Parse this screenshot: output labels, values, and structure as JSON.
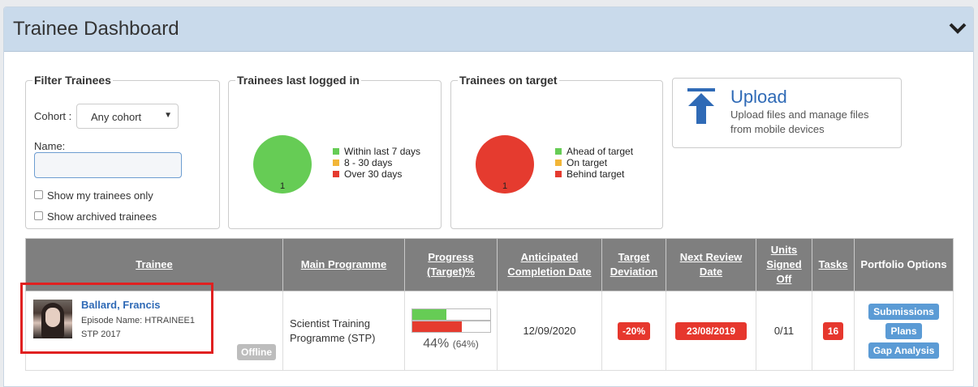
{
  "header": {
    "title": "Trainee Dashboard",
    "collapse_icon": "chevron-down-icon"
  },
  "filter": {
    "legend": "Filter Trainees",
    "cohort_label": "Cohort :",
    "cohort_value": "Any cohort",
    "name_label": "Name:",
    "name_value": "",
    "show_my_trainees": "Show my trainees only",
    "show_archived": "Show archived trainees"
  },
  "chart_data": [
    {
      "type": "pie",
      "title": "Trainees last logged in",
      "categories": [
        "Within last 7 days",
        "8 - 30 days",
        "Over 30 days"
      ],
      "values": [
        1,
        0,
        0
      ],
      "colors": [
        "#66cc55",
        "#f2b638",
        "#e53b2f"
      ],
      "slice_label": "1",
      "legend": "right"
    },
    {
      "type": "pie",
      "title": "Trainees on target",
      "categories": [
        "Ahead of target",
        "On target",
        "Behind target"
      ],
      "values": [
        0,
        0,
        1
      ],
      "colors": [
        "#66cc55",
        "#f2b638",
        "#e53b2f"
      ],
      "slice_label": "1",
      "legend": "right"
    }
  ],
  "upload": {
    "title": "Upload",
    "description": "Upload files and manage files from mobile devices",
    "icon": "upload-arrow-icon"
  },
  "table": {
    "headers": {
      "trainee": "Trainee",
      "programme": "Main Programme",
      "progress": "Progress (Target)%",
      "completion": "Anticipated Completion Date",
      "deviation": "Target Deviation",
      "review": "Next Review Date",
      "units": "Units Signed Off",
      "tasks": "Tasks",
      "portfolio": "Portfolio Options"
    },
    "row": {
      "name": "Ballard, Francis",
      "episode": "Episode Name: HTRAINEE1",
      "cohort": "STP 2017",
      "status": "Offline",
      "programme": "Scientist Training Programme (STP)",
      "progress_value": 0.44,
      "target_value": 0.64,
      "progress_text": "44%",
      "target_text": "(64%)",
      "progress_color": "#66cc55",
      "target_color": "#e53b2f",
      "completion": "12/09/2020",
      "deviation": "-20%",
      "review": "23/08/2019",
      "units": "0/11",
      "tasks": "16",
      "options": [
        "Submissions",
        "Plans",
        "Gap Analysis"
      ]
    }
  }
}
